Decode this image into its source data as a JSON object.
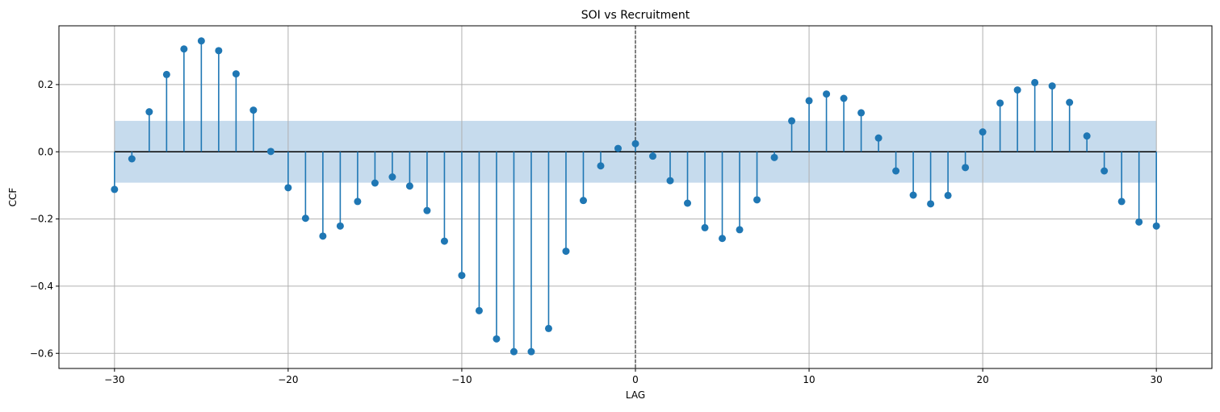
{
  "chart_data": {
    "type": "stem",
    "title": "SOI vs Recruitment",
    "xlabel": "LAG",
    "ylabel": "CCF",
    "xlim": [
      -33.2,
      33.2
    ],
    "ylim": [
      -0.645,
      0.375
    ],
    "xticks": [
      -30,
      -20,
      -10,
      0,
      10,
      20,
      30
    ],
    "yticks": [
      -0.6,
      -0.4,
      -0.2,
      0.0,
      0.2
    ],
    "xtick_labels": [
      "−30",
      "−20",
      "−10",
      "0",
      "10",
      "20",
      "30"
    ],
    "ytick_labels": [
      "−0.6",
      "−0.4",
      "−0.2",
      "0.0",
      "0.2"
    ],
    "grid": true,
    "confidence_band": [
      -0.092,
      0.092
    ],
    "zero_line_range": [
      -30,
      30
    ],
    "vline_x": 0,
    "colors": {
      "stem": "#1f77b4",
      "marker": "#1f77b4",
      "band": "#c6dbed",
      "grid": "#b0b0b0",
      "zero_line": "#000000",
      "vline": "#000000"
    },
    "x": [
      -30,
      -29,
      -28,
      -27,
      -26,
      -25,
      -24,
      -23,
      -22,
      -21,
      -20,
      -19,
      -18,
      -17,
      -16,
      -15,
      -14,
      -13,
      -12,
      -11,
      -10,
      -9,
      -8,
      -7,
      -6,
      -5,
      -4,
      -3,
      -2,
      -1,
      0,
      1,
      2,
      3,
      4,
      5,
      6,
      7,
      8,
      9,
      10,
      11,
      12,
      13,
      14,
      15,
      16,
      17,
      18,
      19,
      20,
      21,
      22,
      23,
      24,
      25,
      26,
      27,
      28,
      29,
      30
    ],
    "values": [
      -0.112,
      -0.021,
      0.119,
      0.23,
      0.306,
      0.33,
      0.301,
      0.232,
      0.124,
      0.001,
      -0.107,
      -0.198,
      -0.251,
      -0.221,
      -0.148,
      -0.093,
      -0.075,
      -0.102,
      -0.175,
      -0.266,
      -0.368,
      -0.473,
      -0.557,
      -0.595,
      -0.595,
      -0.526,
      -0.296,
      -0.145,
      -0.042,
      0.01,
      0.024,
      -0.013,
      -0.086,
      -0.153,
      -0.226,
      -0.258,
      -0.232,
      -0.143,
      -0.017,
      0.092,
      0.152,
      0.172,
      0.159,
      0.116,
      0.041,
      -0.057,
      -0.129,
      -0.155,
      -0.13,
      -0.047,
      0.059,
      0.145,
      0.184,
      0.206,
      0.196,
      0.147,
      0.047,
      -0.057,
      -0.148,
      -0.209,
      -0.221
    ]
  }
}
